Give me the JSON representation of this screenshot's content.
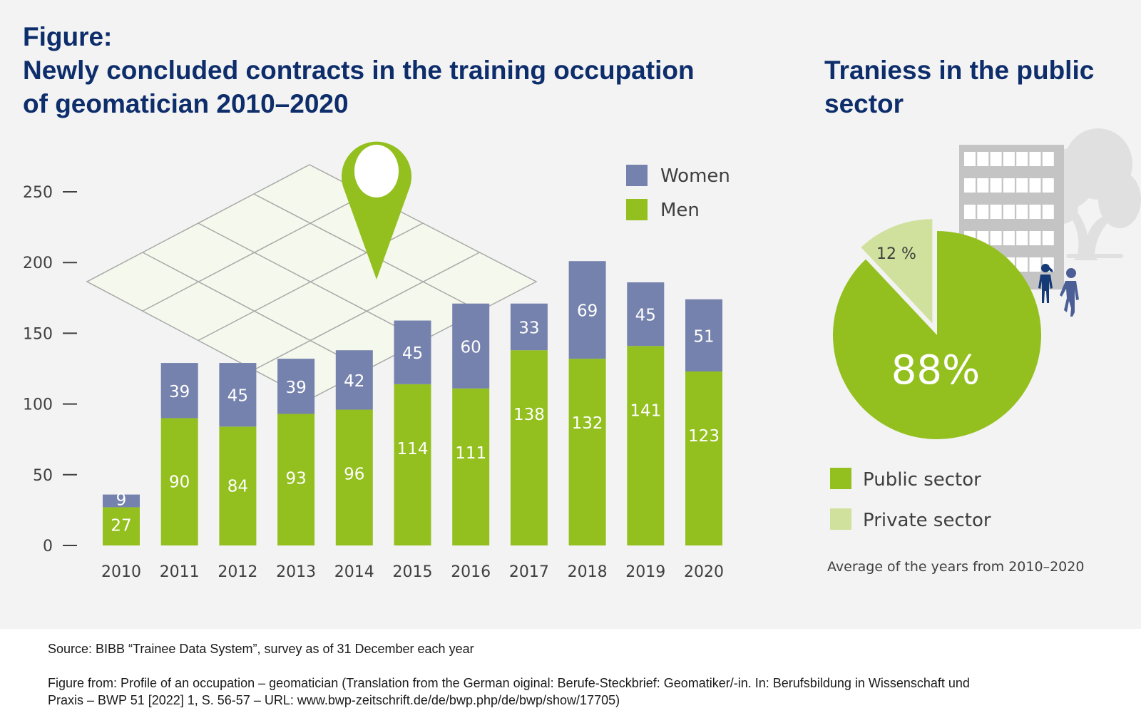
{
  "main_title": {
    "line1": "Figure:",
    "line2": "Newly concluded contracts in the training occupation",
    "line3": "of geomatician 2010–2020"
  },
  "pie_title": {
    "line1": "Traniess in the public",
    "line2": "sector"
  },
  "pie_note": "Average of the years from 2010–2020",
  "footer": {
    "source": "Source: BIBB “Trainee Data System”, survey as of 31 December each year",
    "figure_from_line1": "Figure from: Profile of an occupation – geomatician (Translation from the German oiginal: Berufe-Steckbrief: Geomatiker/-in. In: Berufsbildung in Wissenschaft und",
    "figure_from_line2": "Praxis – BWP 51 [2022] 1, S. 56-57 – URL: www.bwp-zeitschrift.de/de/bwp.php/de/bwp/show/17705)"
  },
  "colors": {
    "women": "#7582ad",
    "men": "#93c01f",
    "public": "#93c01f",
    "private": "#d0e19d",
    "title": "#0d2d6b"
  },
  "icons": [
    "map-grid-illustration",
    "location-pin-icon",
    "office-building-icon",
    "tree-icon",
    "woman-figure-icon",
    "man-figure-icon"
  ],
  "chart_data": [
    {
      "type": "bar",
      "stacked": true,
      "title": "Newly concluded contracts in the training occupation of geomatician 2010–2020",
      "xlabel": "",
      "ylabel": "",
      "categories": [
        "2010",
        "2011",
        "2012",
        "2013",
        "2014",
        "2015",
        "2016",
        "2017",
        "2018",
        "2019",
        "2020"
      ],
      "series": [
        {
          "name": "Men",
          "values": [
            27,
            90,
            84,
            93,
            96,
            114,
            111,
            138,
            132,
            141,
            123
          ]
        },
        {
          "name": "Women",
          "values": [
            9,
            39,
            45,
            39,
            42,
            45,
            60,
            33,
            69,
            45,
            51
          ]
        }
      ],
      "legend": [
        "Women",
        "Men"
      ],
      "legend_position": "top-right",
      "ylim": [
        0,
        250
      ],
      "yticks": [
        0,
        50,
        100,
        150,
        200,
        250
      ],
      "grid": false
    },
    {
      "type": "pie",
      "title": "Traniess in the public sector",
      "categories": [
        "Public sector",
        "Private sector"
      ],
      "values": [
        88,
        12
      ],
      "labels": [
        "88%",
        "12 %"
      ],
      "legend": [
        "Public sector",
        "Private sector"
      ],
      "legend_position": "bottom",
      "note": "Average of the years from 2010–2020"
    }
  ]
}
